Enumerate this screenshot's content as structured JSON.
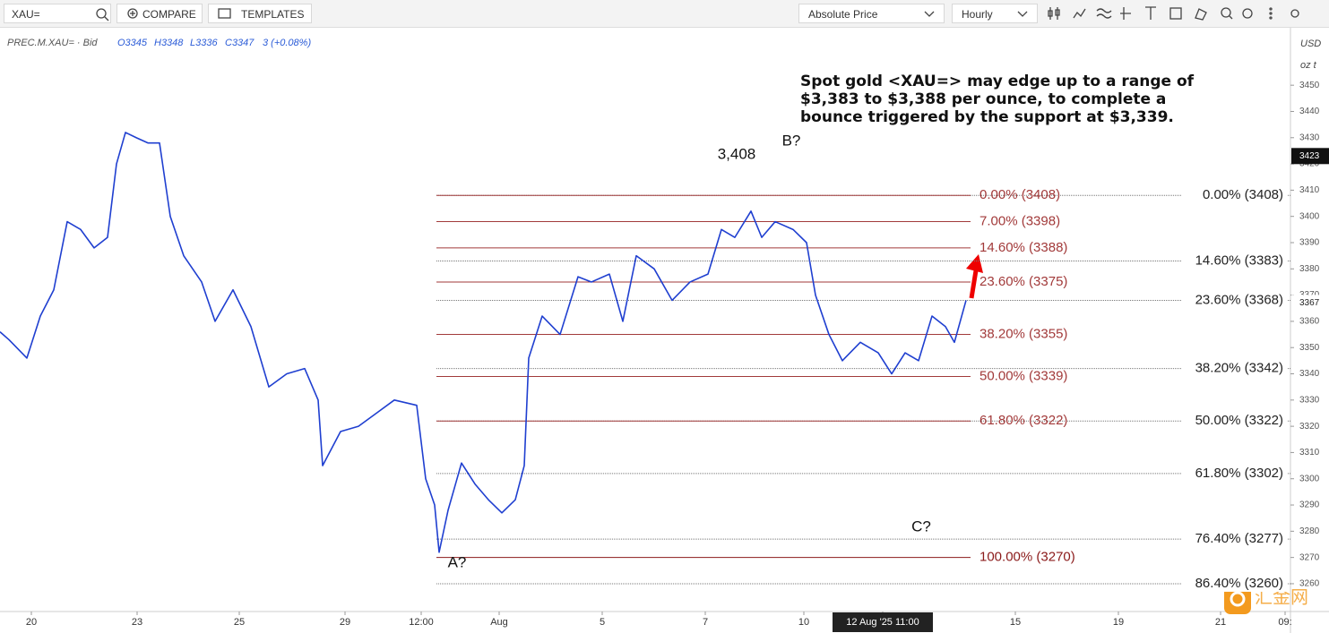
{
  "toolbar": {
    "symbol": "XAU=",
    "compare": "COMPARE",
    "templates": "TEMPLATES",
    "price_mode": "Absolute Price",
    "interval": "Hourly"
  },
  "legend": {
    "name": "PREC.M.XAU= · Bid",
    "open": "O3345",
    "high": "H3348",
    "low": "L3336",
    "close": "C3347",
    "change": "3 (+0.08%)"
  },
  "axis_units": [
    "USD",
    "oz t"
  ],
  "watermark": "汇金网",
  "chart_data": {
    "type": "line",
    "x": [
      0,
      1,
      3,
      4.5,
      6,
      7.5,
      9,
      10.5,
      12,
      13,
      14,
      15.2,
      16.5,
      17.8,
      19,
      20.5,
      22.5,
      24,
      26,
      28,
      30,
      32,
      34,
      35.5,
      36,
      38,
      40,
      42,
      44,
      46.5,
      47.5,
      48.5,
      49,
      50,
      51.5,
      53,
      54.5,
      56,
      57.5,
      58.5,
      59,
      60.5,
      62.5,
      64.5,
      66,
      68,
      69.5,
      71,
      73,
      75,
      77,
      79,
      80.5,
      82,
      83.8,
      85,
      86.5,
      88.5,
      90,
      91,
      92.5,
      94,
      96,
      98,
      99.5,
      101,
      102.5,
      104,
      105.5,
      106.5,
      107.8
    ],
    "series": [
      {
        "name": "PREC.M.XAU=",
        "color": "#1f3fd0",
        "values": [
          3356,
          3353,
          3346,
          3362,
          3372,
          3398,
          3395,
          3388,
          3392,
          3420,
          3432,
          3430,
          3428,
          3428,
          3400,
          3385,
          3375,
          3360,
          3372,
          3358,
          3335,
          3340,
          3342,
          3330,
          3305,
          3318,
          3320,
          3325,
          3330,
          3328,
          3300,
          3290,
          3272,
          3288,
          3306,
          3298,
          3292,
          3287,
          3292,
          3305,
          3346,
          3362,
          3355,
          3377,
          3375,
          3378,
          3360,
          3385,
          3380,
          3368,
          3375,
          3378,
          3395,
          3392,
          3402,
          3392,
          3398,
          3395,
          3390,
          3370,
          3355,
          3345,
          3352,
          3348,
          3340,
          3348,
          3345,
          3362,
          3358,
          3352,
          3368
        ]
      }
    ],
    "xlim": [
      0,
      144
    ],
    "xticks": [
      {
        "value": 3.5,
        "label": "20"
      },
      {
        "value": 15.3,
        "label": "23"
      },
      {
        "value": 26.7,
        "label": "25"
      },
      {
        "value": 38.5,
        "label": "29"
      },
      {
        "value": 47,
        "label": "12:00"
      },
      {
        "value": 55.7,
        "label": "Aug"
      },
      {
        "value": 67.2,
        "label": "5"
      },
      {
        "value": 78.7,
        "label": "7"
      },
      {
        "value": 89.7,
        "label": "10"
      },
      {
        "value": 98.5,
        "label": "12 Aug '25   11:00"
      },
      {
        "value": 113.3,
        "label": "15"
      },
      {
        "value": 124.8,
        "label": "19"
      },
      {
        "value": 136.2,
        "label": "21"
      },
      {
        "value": 143.4,
        "label": "09:"
      }
    ],
    "ylim": [
      3249.4,
      3471.9
    ],
    "yticks": [
      3260,
      3270,
      3280,
      3290,
      3300,
      3310,
      3320,
      3330,
      3340,
      3350,
      3360,
      3370,
      3380,
      3390,
      3400,
      3410,
      3420,
      3430,
      3440,
      3450
    ],
    "price_labels": [
      3423,
      3367
    ],
    "fib_red": [
      {
        "label": "0.00% (3408)",
        "value": 3408
      },
      {
        "label": "7.00% (3398)",
        "value": 3398
      },
      {
        "label": "14.60% (3388)",
        "value": 3388
      },
      {
        "label": "23.60% (3375)",
        "value": 3375
      },
      {
        "label": "38.20% (3355)",
        "value": 3355
      },
      {
        "label": "50.00% (3339)",
        "value": 3339
      },
      {
        "label": "61.80% (3322)",
        "value": 3322
      },
      {
        "label": "100.00% (3270)",
        "value": 3270
      }
    ],
    "fib_gray": [
      {
        "label": "0.00% (3408)",
        "value": 3408
      },
      {
        "label": "14.60% (3383)",
        "value": 3383
      },
      {
        "label": "23.60% (3368)",
        "value": 3368
      },
      {
        "label": "38.20% (3342)",
        "value": 3342
      },
      {
        "label": "50.00% (3322)",
        "value": 3322
      },
      {
        "label": "61.80% (3302)",
        "value": 3302
      },
      {
        "label": "76.40% (3277)",
        "value": 3277
      },
      {
        "label": "86.40% (3260)",
        "value": 3260
      }
    ],
    "annotations": [
      {
        "text": "3,408",
        "x": 82.2,
        "y": 3423.5
      },
      {
        "text": "B?",
        "x": 88.3,
        "y": 3428.5
      },
      {
        "text": "A?",
        "x": 51,
        "y": 3267.8
      },
      {
        "text": "C?",
        "x": 102.8,
        "y": 3281.5
      }
    ],
    "commentary": [
      "Spot gold <XAU=> may edge up to a range of",
      "$3,383 to $3,388 per ounce, to complete a",
      "bounce triggered by the support at $3,339."
    ]
  }
}
